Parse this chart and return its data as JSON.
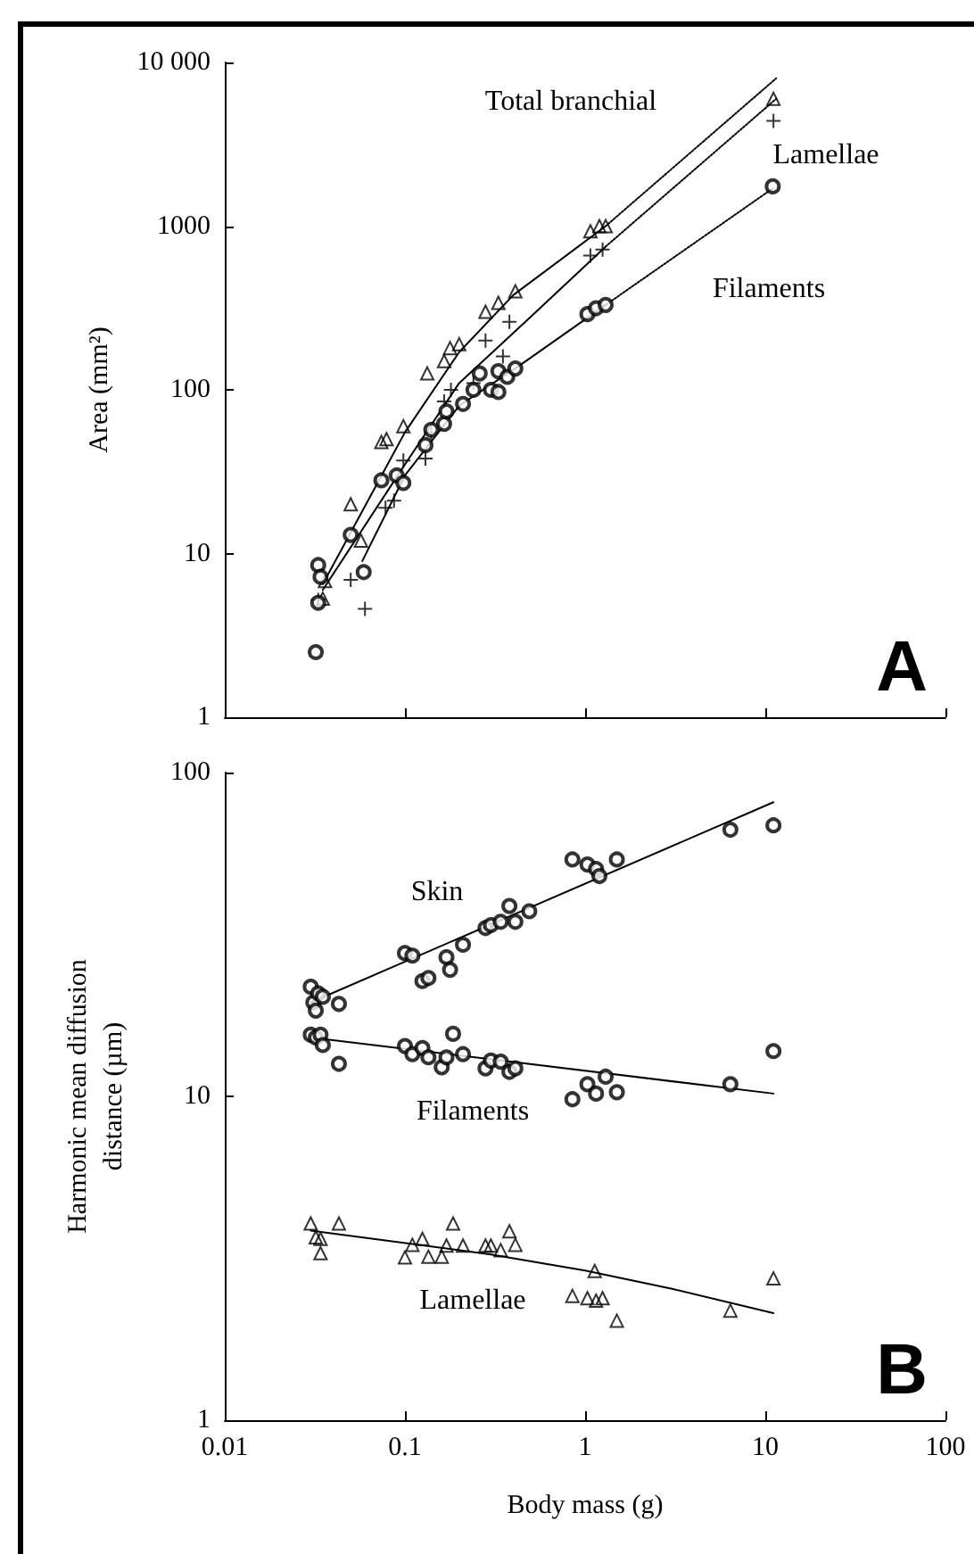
{
  "chart_data": [
    {
      "type": "scatter",
      "ylabel": "Area (mm²)",
      "log": "xy",
      "tick_labels": "y",
      "xlim": [
        0.01,
        100
      ],
      "xticks": [
        0.01,
        0.1,
        1,
        10,
        100
      ],
      "ylim": [
        1,
        10000
      ],
      "yticks": [
        1,
        10,
        100,
        1000,
        {
          "value": 10000,
          "label": "10 000"
        }
      ],
      "annotations": [
        "Total branchial",
        "Lamellae",
        "Filaments",
        "A"
      ],
      "series": [
        {
          "type": "scatter",
          "marker": "triangle",
          "color": "#000000",
          "x": [
            0.035,
            0.036,
            0.05,
            0.057,
            0.074,
            0.079,
            0.098,
            0.133,
            0.165,
            0.178,
            0.2,
            0.28,
            0.33,
            0.41,
            1.07,
            1.2,
            1.3,
            11.1
          ],
          "values": [
            5.3,
            6.8,
            20,
            12,
            48,
            50,
            60,
            126,
            150,
            180,
            190,
            300,
            340,
            400,
            930,
            1000,
            1000,
            6000
          ]
        },
        {
          "type": "scatter",
          "marker": "cross",
          "color": "#000000",
          "x": [
            0.033,
            0.05,
            0.06,
            0.078,
            0.087,
            0.098,
            0.13,
            0.14,
            0.165,
            0.18,
            0.24,
            0.28,
            0.35,
            0.38,
            1.07,
            1.25,
            11.1
          ],
          "values": [
            5.2,
            6.9,
            4.6,
            19,
            21,
            37,
            38,
            55,
            85,
            100,
            110,
            200,
            160,
            260,
            660,
            720,
            4400
          ]
        },
        {
          "type": "scatter",
          "marker": "circle",
          "color": "#000000",
          "x": [
            0.032,
            0.033,
            0.034,
            0.033,
            0.059,
            0.05,
            0.074,
            0.09,
            0.098,
            0.13,
            0.14,
            0.165,
            0.17,
            0.21,
            0.24,
            0.26,
            0.3,
            0.33,
            0.33,
            0.37,
            0.41,
            1.03,
            1.15,
            1.3,
            11
          ],
          "values": [
            2.5,
            8.5,
            7.2,
            5,
            7.7,
            13,
            28,
            30,
            27,
            46,
            57,
            62,
            74,
            82,
            100,
            126,
            100,
            97,
            130,
            120,
            135,
            290,
            315,
            330,
            1750
          ]
        },
        {
          "type": "line",
          "marker": "none",
          "line_style": "solid",
          "color": "#000000",
          "x": [
            0.035,
            0.1,
            0.2,
            0.4,
            1.3
          ],
          "values": [
            6.5,
            55,
            170,
            380,
            1000
          ]
        },
        {
          "type": "line",
          "marker": "none",
          "line_style": "dotted",
          "color": "#000000",
          "x": [
            1.3,
            11.5
          ],
          "values": [
            1000,
            8000
          ]
        },
        {
          "type": "line",
          "marker": "none",
          "line_style": "solid",
          "color": "#000000",
          "x": [
            0.035,
            0.1,
            0.2,
            0.5,
            1.3
          ],
          "values": [
            6,
            35,
            110,
            280,
            750
          ]
        },
        {
          "type": "line",
          "marker": "none",
          "line_style": "dotted",
          "color": "#000000",
          "x": [
            1.3,
            11.5
          ],
          "values": [
            750,
            6000
          ]
        },
        {
          "type": "line",
          "marker": "none",
          "line_style": "solid",
          "color": "#000000",
          "x": [
            0.058,
            0.1,
            0.2,
            0.43,
            1.3
          ],
          "values": [
            9,
            30,
            80,
            140,
            330
          ]
        },
        {
          "type": "line",
          "marker": "none",
          "line_style": "dotted",
          "color": "#000000",
          "x": [
            1.3,
            11
          ],
          "values": [
            330,
            1700
          ]
        }
      ]
    },
    {
      "type": "scatter",
      "xlabel": "Body mass (g)",
      "ylabel": "Harmonic mean diffusion\ndistance (µm)",
      "log": "xy",
      "xlim": [
        0.01,
        100
      ],
      "xticks": [
        0.01,
        0.1,
        1,
        10,
        100
      ],
      "ylim": [
        1,
        100
      ],
      "yticks": [
        1,
        10,
        100
      ],
      "annotations": [
        "Skin",
        "Filaments",
        "Lamellae",
        "B"
      ],
      "series": [
        {
          "type": "scatter",
          "marker": "circle",
          "color": "#000000",
          "x": [
            0.03,
            0.031,
            0.032,
            0.033,
            0.035,
            0.043,
            0.1,
            0.11,
            0.125,
            0.135,
            0.17,
            0.178,
            0.21,
            0.28,
            0.3,
            0.34,
            0.38,
            0.41,
            0.49,
            0.85,
            1.03,
            1.15,
            1.2,
            1.5,
            6.4,
            11.1
          ],
          "values": [
            21.8,
            19.5,
            18.4,
            20.8,
            20.3,
            19.3,
            27.7,
            27.2,
            22.7,
            23.2,
            26.9,
            24.6,
            29.4,
            33.1,
            33.8,
            34.6,
            38.7,
            34.6,
            37.3,
            53.9,
            52,
            50.4,
            47.9,
            53.9,
            66.6,
            68.7
          ]
        },
        {
          "type": "line",
          "marker": "none",
          "line_style": "solid",
          "color": "#000000",
          "x": [
            0.03,
            11.1
          ],
          "values": [
            19.5,
            81
          ]
        },
        {
          "type": "scatter",
          "marker": "circle",
          "color": "#000000",
          "x": [
            0.03,
            0.032,
            0.034,
            0.035,
            0.043,
            0.1,
            0.11,
            0.125,
            0.135,
            0.16,
            0.17,
            0.185,
            0.21,
            0.28,
            0.3,
            0.34,
            0.38,
            0.41,
            0.85,
            1.03,
            1.15,
            1.3,
            1.5,
            6.4,
            11.1
          ],
          "values": [
            15.5,
            15.2,
            15.5,
            14.4,
            12.6,
            14.3,
            13.5,
            14.1,
            13.2,
            12.3,
            13.2,
            15.6,
            13.5,
            12.2,
            12.9,
            12.8,
            11.9,
            12.2,
            9.8,
            10.9,
            10.2,
            11.5,
            10.3,
            10.9,
            13.8
          ]
        },
        {
          "type": "line",
          "marker": "none",
          "line_style": "solid",
          "color": "#000000",
          "x": [
            0.03,
            11.1
          ],
          "values": [
            15.2,
            10.2
          ]
        },
        {
          "type": "scatter",
          "marker": "triangle",
          "color": "#000000",
          "x": [
            0.03,
            0.032,
            0.034,
            0.034,
            0.043,
            0.1,
            0.11,
            0.125,
            0.135,
            0.16,
            0.17,
            0.185,
            0.21,
            0.28,
            0.3,
            0.34,
            0.38,
            0.41,
            0.85,
            1.03,
            1.13,
            1.15,
            1.25,
            1.5,
            6.4,
            11.1
          ],
          "values": [
            4.05,
            3.67,
            3.63,
            3.28,
            4.05,
            3.18,
            3.48,
            3.63,
            3.2,
            3.2,
            3.46,
            4.05,
            3.46,
            3.46,
            3.46,
            3.35,
            3.83,
            3.48,
            2.42,
            2.38,
            2.89,
            2.34,
            2.38,
            2.03,
            2.18,
            2.74
          ]
        },
        {
          "type": "line",
          "marker": "none",
          "line_style": "solid",
          "color": "#000000",
          "x": [
            0.03,
            0.3,
            1,
            3,
            11.1
          ],
          "values": [
            3.85,
            3.25,
            2.9,
            2.55,
            2.14
          ]
        }
      ]
    }
  ]
}
